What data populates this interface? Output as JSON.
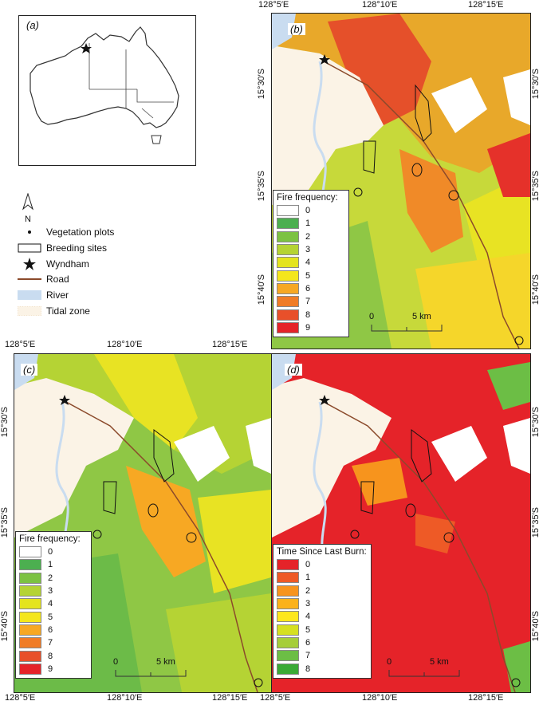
{
  "panel_a": {
    "letter": "(a)"
  },
  "panel_b": {
    "letter": "(b)",
    "top_lon": [
      "128°5′E",
      "128°10′E",
      "128°15′E"
    ],
    "right_lat": [
      "15°30′S",
      "15°35′S",
      "15°40′S"
    ],
    "left_lat": [
      "15°30′S",
      "15°35′S",
      "15°40′S"
    ]
  },
  "panel_c": {
    "letter": "(c)",
    "top_lon": [
      "128°5′E",
      "128°10′E",
      "128°15′E"
    ],
    "left_lat": [
      "15°30′S",
      "15°35′S",
      "15°40′S"
    ],
    "bottom_lon": [
      "128°5′E",
      "128°10′E",
      "128°15′E"
    ]
  },
  "panel_d": {
    "letter": "(d)",
    "right_lat": [
      "15°30′S",
      "15°35′S",
      "15°40′S"
    ],
    "bottom_lon": [
      "128°5′E",
      "128°10′E",
      "128°15′E"
    ]
  },
  "scalebar": {
    "zero": "0",
    "five": "5 km"
  },
  "north": {
    "label": "N"
  },
  "key": {
    "items": [
      {
        "label": "Vegetation plots",
        "icon": "dot-icon"
      },
      {
        "label": "Breeding sites",
        "icon": "outline-icon"
      },
      {
        "label": "Wyndham",
        "icon": "star-icon"
      },
      {
        "label": "Road",
        "icon": "line-icon"
      },
      {
        "label": "River",
        "icon": "river-icon"
      },
      {
        "label": "Tidal zone",
        "icon": "tidal-icon"
      }
    ],
    "road_color": "#8B4A2B",
    "river_color": "#c9dcf0"
  },
  "legend_fire": {
    "title": "Fire frequency:",
    "classes": [
      {
        "label": "0",
        "color": "#ffffff"
      },
      {
        "label": "1",
        "color": "#4caf50"
      },
      {
        "label": "2",
        "color": "#7cc242"
      },
      {
        "label": "3",
        "color": "#b5d334"
      },
      {
        "label": "4",
        "color": "#e4e41e"
      },
      {
        "label": "5",
        "color": "#f4e61c"
      },
      {
        "label": "6",
        "color": "#f7a823"
      },
      {
        "label": "7",
        "color": "#f07c26"
      },
      {
        "label": "8",
        "color": "#e8502a"
      },
      {
        "label": "9",
        "color": "#e52329"
      }
    ]
  },
  "legend_tslb": {
    "title": "Time Since Last Burn:",
    "classes": [
      {
        "label": "0",
        "color": "#e52329"
      },
      {
        "label": "1",
        "color": "#ee5a26"
      },
      {
        "label": "2",
        "color": "#f7941d"
      },
      {
        "label": "3",
        "color": "#fbb21b"
      },
      {
        "label": "4",
        "color": "#fde71e"
      },
      {
        "label": "5",
        "color": "#d6e021"
      },
      {
        "label": "6",
        "color": "#a6ce39"
      },
      {
        "label": "7",
        "color": "#6cbe45"
      },
      {
        "label": "8",
        "color": "#3aaa35"
      }
    ]
  }
}
